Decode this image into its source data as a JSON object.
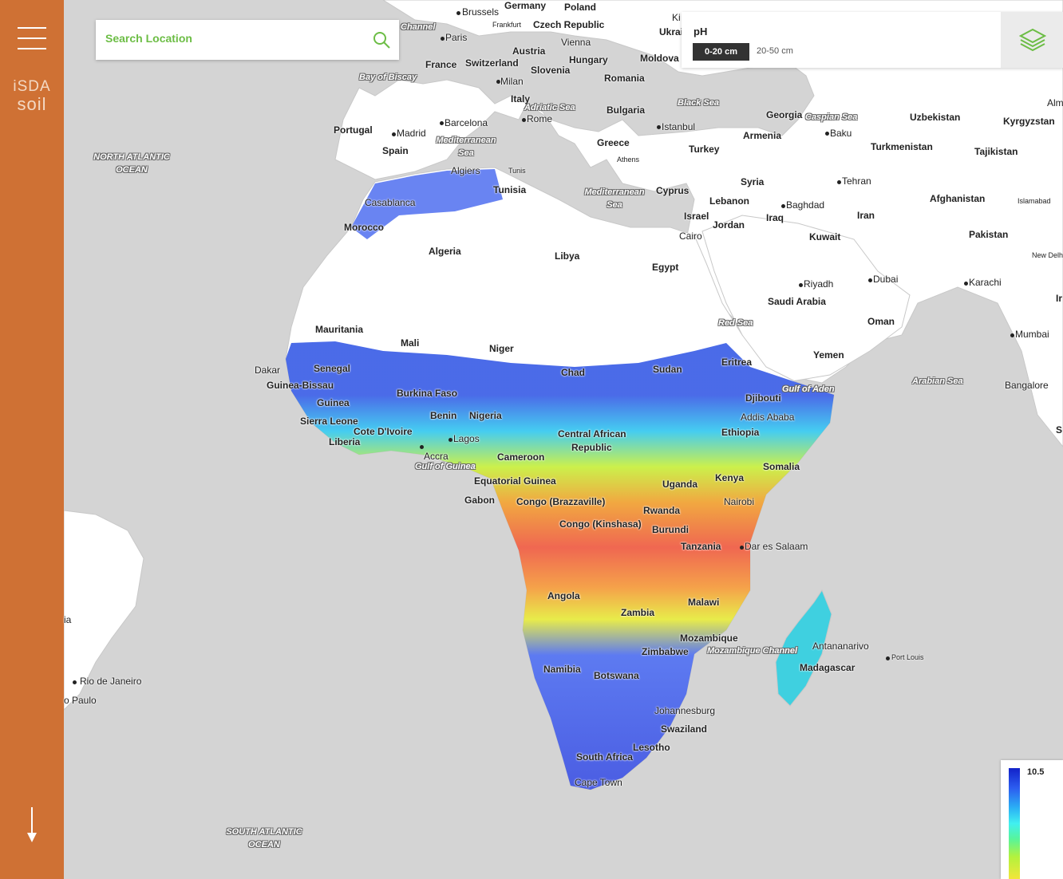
{
  "sidebar": {
    "logo_line1": "iSDA",
    "logo_line2": "soil",
    "menu_icon": "hamburger-menu-icon",
    "scroll_icon": "arrow-down-icon"
  },
  "search": {
    "placeholder": "Search Location",
    "icon": "search-icon"
  },
  "layer_panel": {
    "property": "pH",
    "depths": [
      "0-20 cm",
      "20-50 cm"
    ],
    "selected_depth": "0-20 cm",
    "icon": "layers-icon"
  },
  "legend": {
    "max_value": "10.5"
  },
  "colors": {
    "sidebar": "#cf7134",
    "accent_green": "#6cbd45",
    "ocean": "#d4d4d4",
    "land": "#ffffff"
  },
  "map_labels": {
    "countries": [
      "Germany",
      "Poland",
      "Czech Republic",
      "Ukraine",
      "France",
      "Switzerland",
      "Austria",
      "Hungary",
      "Moldova",
      "Slovenia",
      "Romania",
      "Italy",
      "Bulgaria",
      "Portugal",
      "Spain",
      "Greece",
      "Turkey",
      "Georgia",
      "Armenia",
      "Uzbekistan",
      "Kyrgyzstan",
      "Turkmenistan",
      "Tajikistan",
      "Tunisia",
      "Cyprus",
      "Syria",
      "Lebanon",
      "Israel",
      "Jordan",
      "Iraq",
      "Iran",
      "Afghanistan",
      "Morocco",
      "Algeria",
      "Libya",
      "Egypt",
      "Kuwait",
      "Pakistan",
      "Saudi Arabia",
      "Oman",
      "Mauritania",
      "Mali",
      "Niger",
      "Chad",
      "Sudan",
      "Eritrea",
      "Yemen",
      "Senegal",
      "Guinea-Bissau",
      "Guinea",
      "Burkina Faso",
      "Benin",
      "Nigeria",
      "Sierra Leone",
      "Liberia",
      "Cote D'Ivoire",
      "Djibouti",
      "Ethiopia",
      "Central African",
      "Republic",
      "Cameroon",
      "Somalia",
      "Equatorial Guinea",
      "Gabon",
      "Congo (Brazzaville)",
      "Uganda",
      "Kenya",
      "Rwanda",
      "Congo (Kinshasa)",
      "Burundi",
      "Tanzania",
      "Angola",
      "Malawi",
      "Zambia",
      "Mozambique",
      "Zimbabwe",
      "Madagascar",
      "Namibia",
      "Botswana",
      "Swaziland",
      "Lesotho",
      "South Africa"
    ],
    "cities": [
      "Brussels",
      "Frankfurt",
      "Paris",
      "Vienna",
      "Milan",
      "Rome",
      "Barcelona",
      "Madrid",
      "Algiers",
      "Tunis",
      "Athens",
      "Istanbul",
      "Baku",
      "Tehran",
      "Baghdad",
      "Islamabad",
      "Casablanca",
      "Cairo",
      "Riyadh",
      "Dubai",
      "Karachi",
      "New Delhi",
      "Mumbai",
      "Bangalore",
      "Dakar",
      "Lagos",
      "Accra",
      "Addis Ababa",
      "Nairobi",
      "Dar es Salaam",
      "Antananarivo",
      "Port Louis",
      "Johannesburg",
      "Cape Town",
      "Rio de Janeiro",
      "o Paulo",
      "Ki",
      "Alm"
    ],
    "seas": [
      "Channel",
      "Bay of Biscay",
      "Adriatic Sea",
      "Black Sea",
      "Caspian Sea",
      "Mediterranean Sea",
      "Mediterranean Sea",
      "NORTH ATLANTIC OCEAN",
      "Red Sea",
      "Gulf of Aden",
      "Arabian Sea",
      "Gulf of Guinea",
      "Mozambique Channel",
      "SOUTH ATLANTIC OCEAN"
    ],
    "fragments": [
      "Ukrai",
      "ia",
      "Ir",
      "S"
    ]
  }
}
